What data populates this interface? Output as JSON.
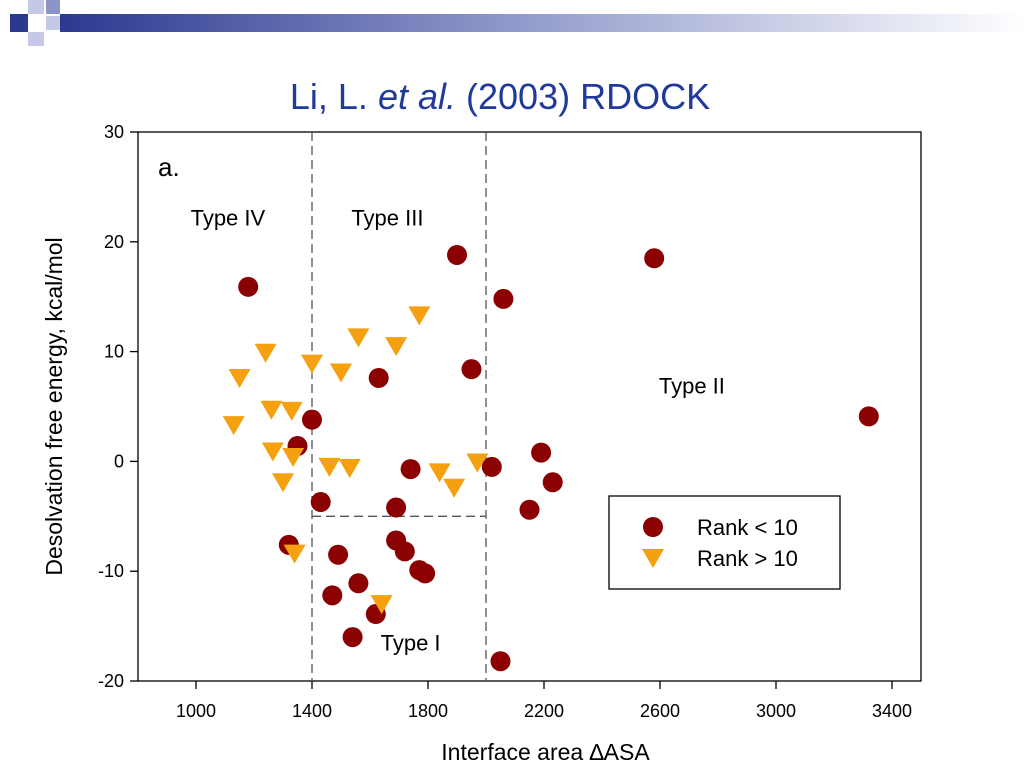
{
  "slide": {
    "title_author": "Li, L.",
    "title_etal": "et al.",
    "title_rest": "(2003) RDOCK"
  },
  "colors": {
    "title": "#1f3a9a",
    "rank_lt_10": "#8b0000",
    "rank_gt_10": "#f5a00f",
    "header_band": "#2b3990"
  },
  "chart_data": {
    "type": "scatter",
    "panel_label": "a.",
    "xlabel": "Interface area ∆ASA",
    "ylabel": "Desolvation free energy, kcal/mol",
    "xlim": [
      800,
      3500
    ],
    "ylim": [
      -20,
      30
    ],
    "x_ticks": [
      1000,
      1400,
      1800,
      2200,
      2600,
      3000,
      3400
    ],
    "y_ticks": [
      -20,
      -10,
      0,
      10,
      20,
      30
    ],
    "grid": false,
    "legend_position": "lower-right",
    "dividers": {
      "vertical_x": [
        1400,
        2000
      ],
      "horizontal": {
        "y": -5,
        "x_from": 1400,
        "x_to": 2000
      }
    },
    "region_labels": [
      {
        "text": "Type IV",
        "x": 1110,
        "y": 21.5
      },
      {
        "text": "Type III",
        "x": 1660,
        "y": 21.5
      },
      {
        "text": "Type II",
        "x": 2710,
        "y": 6.2
      },
      {
        "text": "Type I",
        "x": 1740,
        "y": -17.2
      }
    ],
    "series": [
      {
        "name": "Rank < 10",
        "marker": "circle",
        "color": "#8b0000",
        "x": [
          1180,
          1900,
          2580,
          2060,
          1950,
          1630,
          1400,
          1350,
          3320,
          1430,
          1690,
          1740,
          2020,
          2190,
          2230,
          2150,
          1320,
          1490,
          1690,
          1720,
          1560,
          1770,
          1790,
          1470,
          1620,
          1540,
          2050
        ],
        "y": [
          15.9,
          18.8,
          18.5,
          14.8,
          8.4,
          7.6,
          3.8,
          1.4,
          4.1,
          -3.7,
          -4.2,
          -0.7,
          -0.5,
          0.8,
          -1.9,
          -4.4,
          -7.6,
          -8.5,
          -7.2,
          -8.2,
          -11.1,
          -9.9,
          -10.2,
          -12.2,
          -13.9,
          -16.0,
          -18.2
        ]
      },
      {
        "name": "Rank > 10",
        "marker": "triangle-down",
        "color": "#f5a00f",
        "x": [
          1130,
          1150,
          1240,
          1260,
          1265,
          1300,
          1335,
          1330,
          1340,
          1400,
          1500,
          1560,
          1690,
          1770,
          1460,
          1530,
          1840,
          1890,
          1970,
          1640
        ],
        "y": [
          3.3,
          7.6,
          9.9,
          4.7,
          0.9,
          -1.9,
          0.4,
          4.6,
          -8.4,
          8.9,
          8.1,
          11.3,
          10.5,
          13.3,
          -0.5,
          -0.6,
          -1.0,
          -2.4,
          -0.1,
          -13.0
        ]
      }
    ]
  }
}
